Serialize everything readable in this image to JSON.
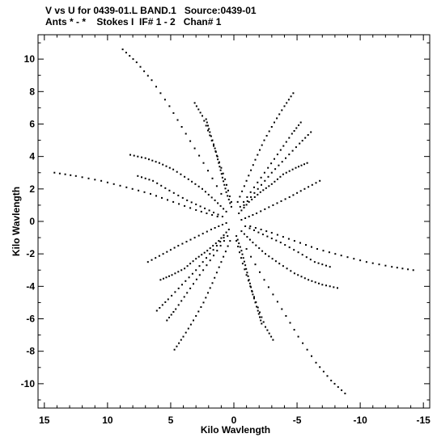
{
  "header": {
    "line1": "V vs U for 0439-01.L BAND.1   Source:0439-01",
    "line2": "Ants * - *    Stokes I  IF# 1 - 2   Chan# 1"
  },
  "chart_data": {
    "type": "scatter",
    "title": "V vs U for 0439-01.L BAND.1   Source:0439-01",
    "subtitle": "Ants * - *    Stokes I  IF# 1 - 2   Chan# 1",
    "xlabel": "Kilo Wavlength",
    "ylabel": "Kilo Wavlength",
    "xlim": [
      15.5,
      -15.5
    ],
    "ylim": [
      -11.5,
      11.5
    ],
    "x_reversed": true,
    "grid": false,
    "x_ticks": [
      15,
      10,
      5,
      0,
      -5,
      -10,
      -15
    ],
    "x_tick_labels": [
      "15",
      "10",
      "5",
      "0",
      "-5",
      "-10",
      "-15"
    ],
    "y_ticks": [
      10,
      8,
      6,
      4,
      2,
      0,
      -2,
      -4,
      -6,
      -8,
      -10
    ],
    "y_tick_labels": [
      "10",
      "8",
      "6",
      "4",
      "2",
      "0",
      "-2",
      "-4",
      "-6",
      "-8",
      "-10"
    ],
    "marker_color": "#000000",
    "series": [
      {
        "tracks": [
          [
            [
              0.2,
              0.9
            ],
            [
              0.6,
              1.8
            ],
            [
              0.9,
              2.7
            ],
            [
              1.2,
              3.6
            ],
            [
              1.5,
              4.5
            ],
            [
              1.9,
              5.5
            ],
            [
              2.2,
              6.3
            ]
          ],
          [
            [
              0.6,
              0.6
            ],
            [
              1.5,
              1.3
            ],
            [
              2.5,
              2.0
            ],
            [
              3.6,
              2.6
            ],
            [
              4.8,
              3.2
            ],
            [
              5.9,
              3.6
            ],
            [
              7.0,
              3.9
            ],
            [
              8.2,
              4.1
            ]
          ],
          [
            [
              -0.4,
              0.5
            ],
            [
              -1.2,
              1.2
            ],
            [
              -2.1,
              1.8
            ],
            [
              -3.0,
              2.3
            ],
            [
              -3.9,
              2.9
            ],
            [
              -4.9,
              3.3
            ],
            [
              -5.8,
              3.6
            ]
          ],
          [
            [
              -0.3,
              1.2
            ],
            [
              -1.0,
              2.5
            ],
            [
              -1.7,
              3.8
            ],
            [
              -2.4,
              5.0
            ],
            [
              -3.2,
              6.1
            ],
            [
              -4.0,
              7.1
            ],
            [
              -4.7,
              7.9
            ]
          ],
          [
            [
              1.0,
              1.7
            ],
            [
              2.4,
              3.6
            ],
            [
              3.8,
              5.4
            ],
            [
              5.1,
              7.1
            ],
            [
              6.5,
              8.7
            ],
            [
              7.7,
              9.8
            ],
            [
              8.8,
              10.6
            ]
          ],
          [
            [
              1.3,
              0.3
            ],
            [
              3.0,
              0.7
            ],
            [
              4.8,
              1.2
            ],
            [
              6.6,
              1.7
            ],
            [
              8.5,
              2.1
            ],
            [
              10.5,
              2.5
            ],
            [
              12.5,
              2.8
            ],
            [
              14.2,
              3.0
            ]
          ],
          [
            [
              -0.6,
              0.1
            ],
            [
              -1.8,
              0.5
            ],
            [
              -3.1,
              1.0
            ],
            [
              -4.4,
              1.5
            ],
            [
              -5.6,
              2.0
            ],
            [
              -6.8,
              2.5
            ]
          ],
          [
            [
              -0.9,
              -0.3
            ],
            [
              -2.3,
              -0.8
            ],
            [
              -3.7,
              -1.3
            ],
            [
              -5.1,
              -1.9
            ],
            [
              -6.4,
              -2.5
            ],
            [
              -7.6,
              -2.8
            ]
          ],
          [
            [
              -0.2,
              -1.2
            ],
            [
              -0.7,
              -2.6
            ],
            [
              -1.3,
              -4.0
            ],
            [
              -1.9,
              -5.3
            ],
            [
              -2.5,
              -6.5
            ],
            [
              -3.1,
              -7.3
            ]
          ],
          [
            [
              -0.2,
              -0.9
            ],
            [
              -0.6,
              -1.8
            ],
            [
              -0.9,
              -2.7
            ],
            [
              -1.2,
              -3.6
            ],
            [
              -1.5,
              -4.5
            ],
            [
              -1.9,
              -5.5
            ],
            [
              -2.2,
              -6.3
            ]
          ],
          [
            [
              -0.6,
              -0.6
            ],
            [
              -1.5,
              -1.3
            ],
            [
              -2.5,
              -2.0
            ],
            [
              -3.6,
              -2.6
            ],
            [
              -4.8,
              -3.2
            ],
            [
              -5.9,
              -3.6
            ],
            [
              -7.0,
              -3.9
            ],
            [
              -8.2,
              -4.1
            ]
          ],
          [
            [
              0.4,
              -0.5
            ],
            [
              1.2,
              -1.2
            ],
            [
              2.1,
              -1.8
            ],
            [
              3.0,
              -2.3
            ],
            [
              3.9,
              -2.9
            ],
            [
              4.9,
              -3.3
            ],
            [
              5.8,
              -3.6
            ]
          ],
          [
            [
              0.3,
              -1.2
            ],
            [
              1.0,
              -2.5
            ],
            [
              1.7,
              -3.8
            ],
            [
              2.4,
              -5.0
            ],
            [
              3.2,
              -6.1
            ],
            [
              4.0,
              -7.1
            ],
            [
              4.7,
              -7.9
            ]
          ],
          [
            [
              -1.0,
              -1.7
            ],
            [
              -2.4,
              -3.6
            ],
            [
              -3.8,
              -5.4
            ],
            [
              -5.1,
              -7.1
            ],
            [
              -6.5,
              -8.7
            ],
            [
              -7.7,
              -9.8
            ],
            [
              -8.8,
              -10.6
            ]
          ],
          [
            [
              -1.3,
              -0.3
            ],
            [
              -3.0,
              -0.7
            ],
            [
              -4.8,
              -1.2
            ],
            [
              -6.6,
              -1.7
            ],
            [
              -8.5,
              -2.1
            ],
            [
              -10.5,
              -2.5
            ],
            [
              -12.5,
              -2.8
            ],
            [
              -14.2,
              -3.0
            ]
          ],
          [
            [
              0.6,
              -0.1
            ],
            [
              1.8,
              -0.5
            ],
            [
              3.1,
              -1.0
            ],
            [
              4.4,
              -1.5
            ],
            [
              5.6,
              -2.0
            ],
            [
              6.8,
              -2.5
            ]
          ],
          [
            [
              0.9,
              0.3
            ],
            [
              2.3,
              0.8
            ],
            [
              3.7,
              1.3
            ],
            [
              5.1,
              1.9
            ],
            [
              6.4,
              2.5
            ],
            [
              7.6,
              2.8
            ]
          ],
          [
            [
              0.2,
              1.2
            ],
            [
              0.7,
              2.6
            ],
            [
              1.3,
              4.0
            ],
            [
              1.9,
              5.3
            ],
            [
              2.5,
              6.5
            ],
            [
              3.1,
              7.3
            ]
          ],
          [
            [
              -0.8,
              1.0
            ],
            [
              -1.9,
              2.0
            ],
            [
              -3.0,
              3.0
            ],
            [
              -4.1,
              3.9
            ],
            [
              -5.2,
              4.8
            ],
            [
              -6.1,
              5.5
            ]
          ],
          [
            [
              0.8,
              -1.0
            ],
            [
              1.9,
              -2.0
            ],
            [
              3.0,
              -3.0
            ],
            [
              4.1,
              -3.9
            ],
            [
              5.2,
              -4.8
            ],
            [
              6.1,
              -5.5
            ]
          ],
          [
            [
              -0.5,
              0.9
            ],
            [
              -1.6,
              2.1
            ],
            [
              -2.7,
              3.3
            ],
            [
              -3.7,
              4.4
            ],
            [
              -4.6,
              5.4
            ],
            [
              -5.3,
              6.1
            ]
          ],
          [
            [
              0.5,
              -0.9
            ],
            [
              1.6,
              -2.1
            ],
            [
              2.7,
              -3.3
            ],
            [
              3.7,
              -4.4
            ],
            [
              4.6,
              -5.4
            ],
            [
              5.3,
              -6.1
            ]
          ]
        ]
      }
    ]
  }
}
